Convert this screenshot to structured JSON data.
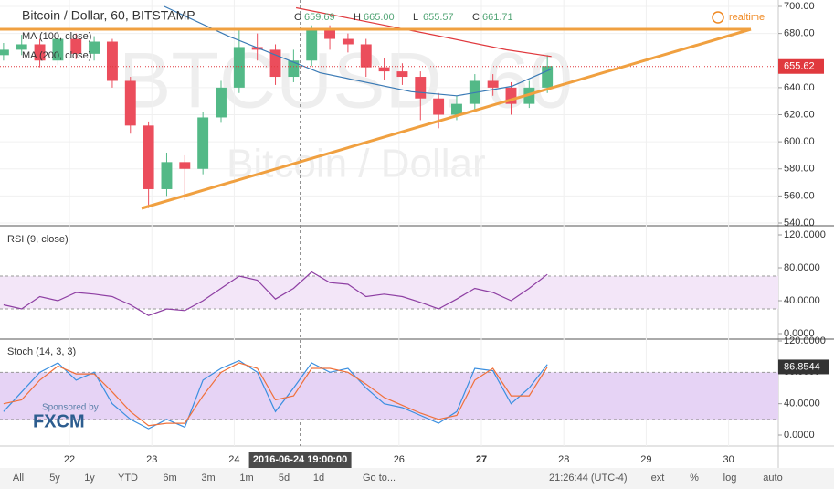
{
  "chart_data": [
    {
      "type": "candlestick",
      "title": "Bitcoin / Dollar, 60, BITSTAMP",
      "x": [
        21.2,
        21.42,
        21.64,
        21.86,
        22.08,
        22.3,
        22.52,
        22.74,
        22.96,
        23.18,
        23.4,
        23.62,
        23.84,
        24.06,
        24.28,
        24.5,
        24.72,
        24.94,
        25.16,
        25.38,
        25.6,
        25.82,
        26.04,
        26.26,
        26.48,
        26.7,
        26.92,
        27.14,
        27.36,
        27.58,
        27.8
      ],
      "open": [
        664,
        668,
        672,
        660,
        676,
        665,
        674,
        645,
        612,
        565,
        585,
        580,
        618,
        640,
        670,
        668,
        648,
        660,
        683,
        676,
        672,
        655,
        652,
        648,
        632,
        620,
        628,
        645,
        640,
        628,
        640
      ],
      "high": [
        673,
        679,
        676,
        682,
        680,
        678,
        676,
        648,
        615,
        592,
        590,
        622,
        645,
        684,
        680,
        672,
        668,
        686,
        686,
        680,
        676,
        662,
        658,
        652,
        636,
        634,
        650,
        650,
        644,
        645,
        664
      ],
      "low": [
        660,
        664,
        655,
        657,
        661,
        660,
        640,
        606,
        551,
        560,
        557,
        576,
        614,
        636,
        660,
        642,
        644,
        656,
        668,
        666,
        648,
        646,
        642,
        616,
        610,
        616,
        624,
        634,
        620,
        625,
        636
      ],
      "close": [
        668,
        672,
        660,
        676,
        665,
        674,
        645,
        612,
        565,
        585,
        580,
        618,
        640,
        670,
        668,
        648,
        660,
        683,
        676,
        672,
        655,
        652,
        648,
        632,
        620,
        628,
        645,
        640,
        628,
        640,
        656
      ],
      "up_color": "#53b987",
      "down_color": "#eb4d5c",
      "series": [
        {
          "name": "MA (100, close)",
          "color": "#3a7ab5",
          "x": [
            23.15,
            23.93,
            25.04,
            26.15,
            26.7,
            27.37,
            27.86
          ],
          "values": [
            700,
            678,
            651,
            637,
            634,
            641,
            654
          ]
        },
        {
          "name": "MA (200, close)",
          "color": "#e0393e",
          "x": [
            24.75,
            25.5,
            26.5,
            27.3,
            27.85
          ],
          "values": [
            699,
            690,
            678,
            668,
            663
          ]
        }
      ],
      "xlim": [
        21.157,
        30.603
      ],
      "xticks": [
        22,
        23,
        24,
        26,
        27,
        28,
        29,
        30
      ],
      "ylim": [
        540,
        700
      ],
      "yticks": [
        {
          "value": 540,
          "label": "540.00"
        },
        {
          "value": 560,
          "label": "560.00"
        },
        {
          "value": 580,
          "label": "580.00"
        },
        {
          "value": 600,
          "label": "600.00"
        },
        {
          "value": 620,
          "label": "620.00"
        },
        {
          "value": 640,
          "label": "640.00"
        },
        {
          "value": 680,
          "label": "680.00"
        },
        {
          "value": 700,
          "label": "700.00"
        }
      ],
      "last_price": {
        "value": 655.62,
        "label": "655.62"
      },
      "crosshair": {
        "value": 24.8,
        "label": "2016-06-24 19:00:00"
      },
      "grid": true
    },
    {
      "type": "line",
      "title": "RSI (9, close)",
      "x": [
        21.2,
        21.42,
        21.64,
        21.86,
        22.08,
        22.3,
        22.52,
        22.74,
        22.96,
        23.18,
        23.4,
        23.62,
        23.84,
        24.06,
        24.28,
        24.5,
        24.72,
        24.94,
        25.16,
        25.38,
        25.6,
        25.82,
        26.04,
        26.26,
        26.48,
        26.7,
        26.92,
        27.14,
        27.36,
        27.58,
        27.8
      ],
      "values": [
        35,
        30,
        45,
        40,
        50,
        48,
        45,
        35,
        22,
        30,
        28,
        40,
        55,
        70,
        65,
        42,
        55,
        75,
        62,
        60,
        45,
        48,
        45,
        38,
        30,
        42,
        55,
        50,
        40,
        55,
        72
      ],
      "color": "#8e3fa3",
      "band": [
        30,
        70
      ],
      "band_color": "#f3e6f8",
      "xlim": [
        21.157,
        30.603
      ],
      "ylim": [
        0,
        120
      ],
      "yticks": [
        {
          "value": 0,
          "label": "0.0000"
        },
        {
          "value": 40,
          "label": "40.0000"
        },
        {
          "value": 80,
          "label": "80.0000"
        },
        {
          "value": 120,
          "label": "120.0000"
        }
      ]
    },
    {
      "type": "line",
      "title": "Stoch (14, 3, 3)",
      "x": [
        21.2,
        21.42,
        21.64,
        21.86,
        22.08,
        22.3,
        22.52,
        22.74,
        22.96,
        23.18,
        23.4,
        23.62,
        23.84,
        24.06,
        24.28,
        24.5,
        24.72,
        24.94,
        25.16,
        25.38,
        25.6,
        25.82,
        26.04,
        26.26,
        26.48,
        26.7,
        26.92,
        27.14,
        27.36,
        27.58,
        27.8
      ],
      "series": [
        {
          "color": "#3b8fe0",
          "values": [
            30,
            55,
            80,
            92,
            70,
            80,
            40,
            20,
            8,
            20,
            10,
            70,
            85,
            95,
            80,
            30,
            60,
            92,
            80,
            85,
            60,
            40,
            35,
            25,
            15,
            30,
            85,
            82,
            40,
            60,
            90
          ]
        },
        {
          "color": "#f0703a",
          "values": [
            40,
            45,
            70,
            88,
            78,
            78,
            55,
            30,
            12,
            15,
            15,
            50,
            80,
            92,
            85,
            45,
            50,
            85,
            85,
            80,
            65,
            48,
            38,
            28,
            20,
            25,
            70,
            85,
            50,
            50,
            86.8544
          ]
        }
      ],
      "band": [
        20,
        80
      ],
      "band_color": "#e6d3f5",
      "value_label": {
        "value": 86.8544,
        "label": "86.8544"
      },
      "xlim": [
        21.157,
        30.603
      ],
      "ylim": [
        0,
        120
      ],
      "yticks": [
        {
          "value": 0,
          "label": "0.0000"
        },
        {
          "value": 40,
          "label": "40.0000"
        },
        {
          "value": 80,
          "label": "80.0000"
        },
        {
          "value": 120,
          "label": "120.0000"
        }
      ]
    }
  ],
  "ui": {
    "ohlc": [
      "O",
      "659.69",
      "H",
      "665.00",
      "L",
      "655.57",
      "C",
      "661.71"
    ],
    "realtime": "realtime",
    "watermark": [
      "BTCUSD, 60",
      "Bitcoin / Dollar"
    ],
    "sponsor": [
      "Sponsored by",
      "FXCM"
    ],
    "toolbar_left": [
      "All",
      "5y",
      "1y",
      "YTD",
      "6m",
      "3m",
      "1m",
      "5d",
      "1d",
      "Go to..."
    ],
    "clock": "21:26:44 (UTC-4)",
    "toolbar_right": [
      "ext",
      "%",
      "log",
      "auto"
    ]
  }
}
